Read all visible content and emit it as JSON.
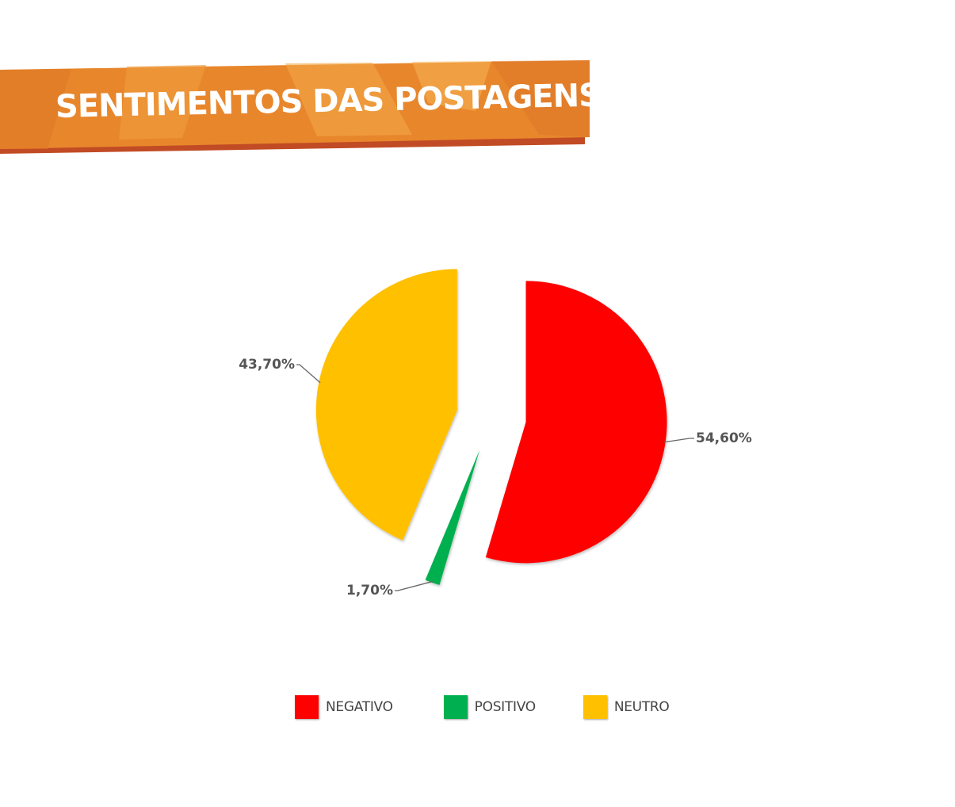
{
  "header": {
    "title": "SENTIMENTOS DAS POSTAGENS"
  },
  "colors": {
    "banner_main": "#E8862C",
    "banner_light": "#F0A23C",
    "banner_shadow": "#C14B24",
    "negativo": "#FF0000",
    "positivo": "#00B050",
    "neutro": "#FFC000",
    "label_text": "#555555"
  },
  "chart_data": {
    "type": "pie",
    "title": "SENTIMENTOS DAS POSTAGENS",
    "categories": [
      "NEGATIVO",
      "POSITIVO",
      "NEUTRO"
    ],
    "values": [
      54.6,
      1.7,
      43.7
    ],
    "value_labels": [
      "54,60%",
      "1,70%",
      "43,70%"
    ],
    "exploded": true,
    "legend_position": "bottom"
  },
  "legend": {
    "items": [
      {
        "label": "NEGATIVO",
        "color": "#FF0000"
      },
      {
        "label": "POSITIVO",
        "color": "#00B050"
      },
      {
        "label": "NEUTRO",
        "color": "#FFC000"
      }
    ]
  }
}
